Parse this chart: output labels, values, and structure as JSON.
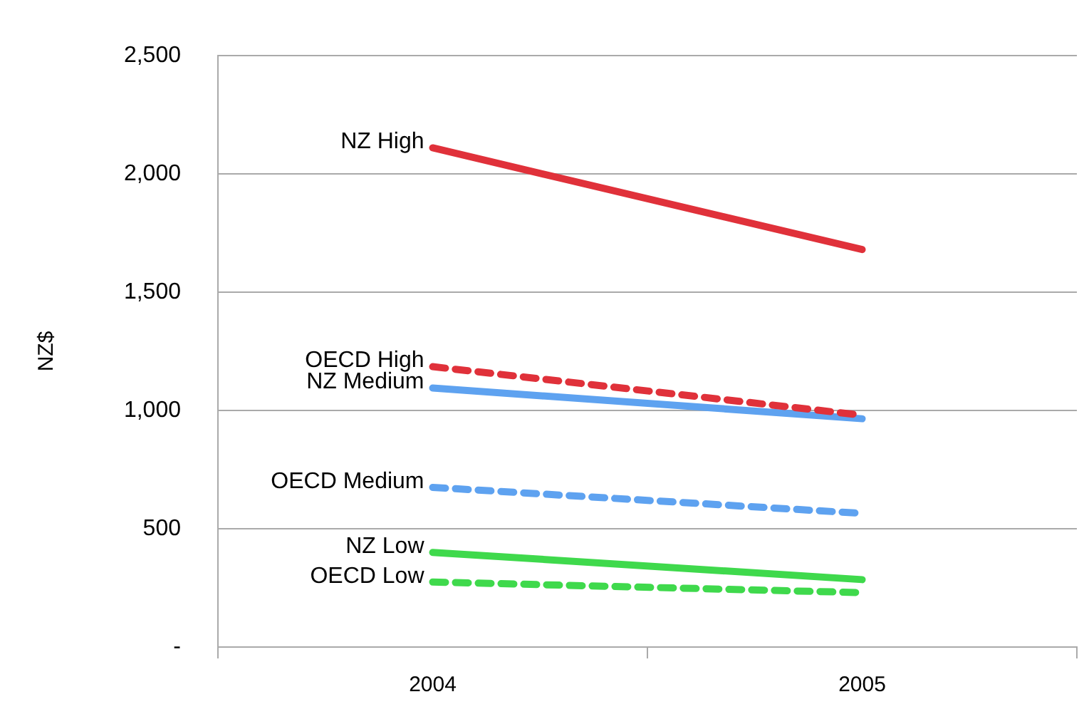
{
  "chart_data": {
    "type": "line",
    "ylabel": "NZ$",
    "categories": [
      "2004",
      "2005"
    ],
    "ylim": [
      0,
      2500
    ],
    "yticks": [
      {
        "value": 0,
        "label": "-"
      },
      {
        "value": 500,
        "label": "500"
      },
      {
        "value": 1000,
        "label": "1,000"
      },
      {
        "value": 1500,
        "label": "1,500"
      },
      {
        "value": 2000,
        "label": "2,000"
      },
      {
        "value": 2500,
        "label": "2,500"
      }
    ],
    "grid": "y",
    "legend": false,
    "marker": "none",
    "series": [
      {
        "name": "NZ High",
        "color": "#e0313a",
        "values": [
          2110,
          1680
        ],
        "line_style": "solid"
      },
      {
        "name": "OECD High",
        "color": "#e0313a",
        "values": [
          1185,
          980
        ],
        "line_style": "dashed"
      },
      {
        "name": "NZ Medium",
        "color": "#5ea2f0",
        "values": [
          1095,
          965
        ],
        "line_style": "solid"
      },
      {
        "name": "OECD Medium",
        "color": "#5ea2f0",
        "values": [
          675,
          565
        ],
        "line_style": "dashed"
      },
      {
        "name": "NZ Low",
        "color": "#3fd94c",
        "values": [
          400,
          285
        ],
        "line_style": "solid"
      },
      {
        "name": "OECD Low",
        "color": "#3fd94c",
        "values": [
          275,
          230
        ],
        "line_style": "dashed"
      }
    ]
  }
}
